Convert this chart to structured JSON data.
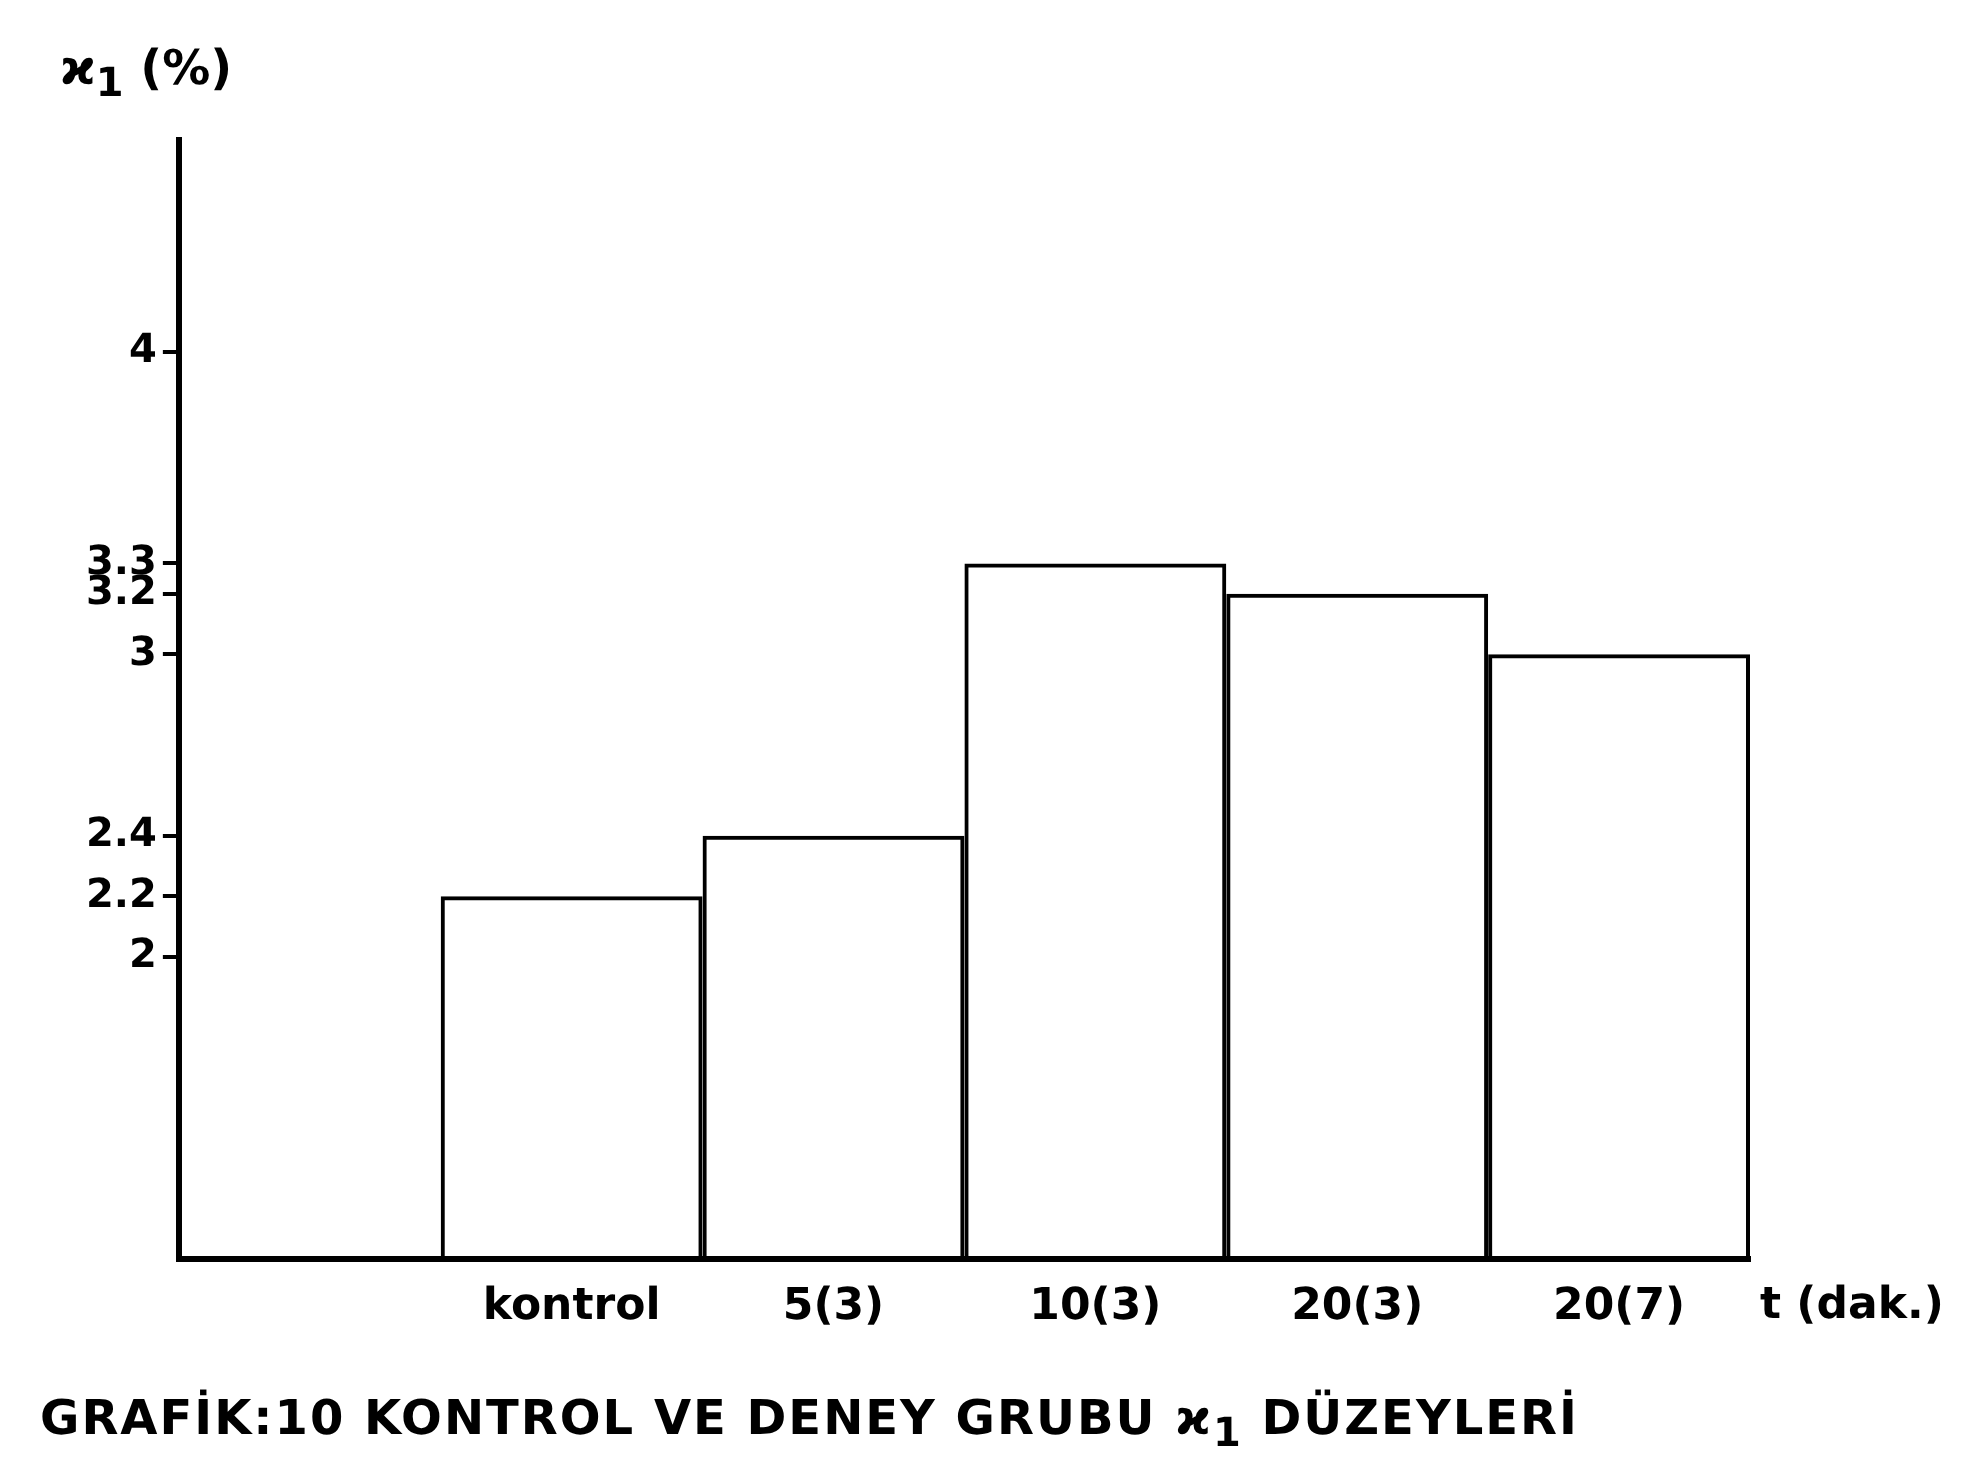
{
  "chart_data": {
    "type": "bar",
    "title": "GRAFİK:10  KONTROL VE DENEY GRUBU ϰ$_{1}$ DÜZEYLERİ",
    "xlabel": "t  (dak.)",
    "ylabel": "ϰ$_{1}$ (%)",
    "categories": [
      null,
      "kontrol",
      "5(3)",
      "10(3)",
      "20(3)",
      "20(7)"
    ],
    "values": [
      null,
      2.2,
      2.4,
      3.3,
      3.2,
      3.0
    ],
    "color": "#000000",
    "ylim": [
      1,
      4.7
    ],
    "yticks": [
      2,
      2.2,
      2.4,
      3,
      3.2,
      3.3,
      4
    ],
    "grid": false,
    "legend": false
  }
}
